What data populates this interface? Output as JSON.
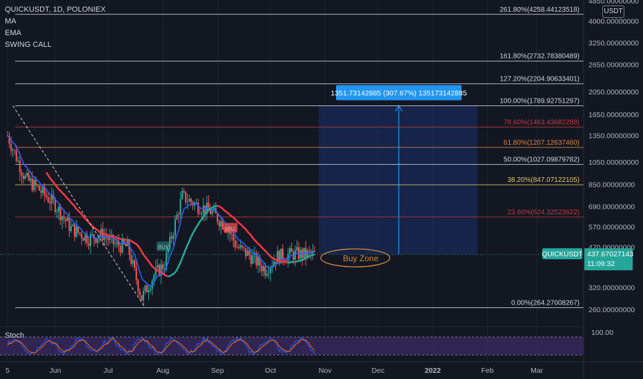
{
  "header": {
    "symbol_line": "QUICKUSDT, 1D, POLONIEX",
    "indicators": [
      "MA",
      "EMA",
      "SWING CALL"
    ],
    "currency_button": "USDT"
  },
  "price_axis": {
    "ticks": [
      "4850.00000000",
      "4000.00000000",
      "3250.00000000",
      "2650.00000000",
      "2050.00000000",
      "1650.00000000",
      "1350.00000000",
      "1050.00000000",
      "850.00000000",
      "690.00000000",
      "570.00000000",
      "470.00000000",
      "320.00000000",
      "260.00000000"
    ],
    "current_symbol": "QUICKUSDT",
    "current_price": "437.67027143",
    "countdown": "11:09:32"
  },
  "time_axis": [
    "5",
    "Jun",
    "Jul",
    "Aug",
    "Sep",
    "Oct",
    "Nov",
    "Dec",
    "2022",
    "Feb",
    "Mar"
  ],
  "fib_levels": [
    {
      "label": "261.80%(4258.44123518)",
      "color": "#d1d4dc",
      "price": 4258.44
    },
    {
      "label": "161.80%(2732.78380489)",
      "color": "#d1d4dc",
      "price": 2732.78
    },
    {
      "label": "127.20%(2204.90633401)",
      "color": "#d1d4dc",
      "price": 2204.91
    },
    {
      "label": "100.00%(1789.92751297)",
      "color": "#d1d4dc",
      "price": 1789.93
    },
    {
      "label": "78.60%(1463.43682288)",
      "color": "#c23b3b",
      "price": 1463.44
    },
    {
      "label": "61.80%(1207.12637460)",
      "color": "#d7863a",
      "price": 1207.13
    },
    {
      "label": "50.00%(1027.09879782)",
      "color": "#d1d4dc",
      "price": 1027.1
    },
    {
      "label": "38.20%(847.07122105)",
      "color": "#e0c463",
      "price": 847.07
    },
    {
      "label": "23.60%(624.32523622)",
      "color": "#c23b3b",
      "price": 624.33
    },
    {
      "label": "0.00%(264.27008267)",
      "color": "#d1d4dc",
      "price": 264.27
    }
  ],
  "annotations": {
    "measure_label": "1351.73142885 (307.67%) 135173142885",
    "buy_zone": "Buy Zone",
    "buy_signal": "BUY",
    "sell_signal": "SELL"
  },
  "stoch": {
    "label": "Stoch",
    "axis_label": "100.00"
  },
  "colors": {
    "up": "#26a69a",
    "down": "#ef5350",
    "ma": "#f23645",
    "ema": "#2962ff",
    "measure": "#2196f3",
    "buy_zone": "#d4883a"
  },
  "chart_data": {
    "type": "candlestick",
    "title": "QUICKUSDT, 1D, POLONIEX",
    "y_scale": "log",
    "ylim": [
      230,
      5200
    ],
    "x_range": [
      "2021-05-05",
      "2022-03-10"
    ],
    "close_path": [
      {
        "date": "2021-05-05",
        "close": 1350
      },
      {
        "date": "2021-05-10",
        "close": 1100
      },
      {
        "date": "2021-05-15",
        "close": 900
      },
      {
        "date": "2021-05-22",
        "close": 820
      },
      {
        "date": "2021-06-01",
        "close": 700
      },
      {
        "date": "2021-06-10",
        "close": 560
      },
      {
        "date": "2021-06-20",
        "close": 510
      },
      {
        "date": "2021-06-28",
        "close": 530
      },
      {
        "date": "2021-07-05",
        "close": 480
      },
      {
        "date": "2021-07-12",
        "close": 470
      },
      {
        "date": "2021-07-20",
        "close": 290
      },
      {
        "date": "2021-07-27",
        "close": 360
      },
      {
        "date": "2021-08-02",
        "close": 400
      },
      {
        "date": "2021-08-06",
        "close": 520
      },
      {
        "date": "2021-08-12",
        "close": 760
      },
      {
        "date": "2021-08-20",
        "close": 700
      },
      {
        "date": "2021-08-28",
        "close": 660
      },
      {
        "date": "2021-09-06",
        "close": 570
      },
      {
        "date": "2021-09-12",
        "close": 470
      },
      {
        "date": "2021-09-20",
        "close": 430
      },
      {
        "date": "2021-09-28",
        "close": 380
      },
      {
        "date": "2021-10-05",
        "close": 430
      },
      {
        "date": "2021-10-15",
        "close": 440
      },
      {
        "date": "2021-10-27",
        "close": 437.67
      }
    ],
    "series": [
      {
        "name": "MA"
      },
      {
        "name": "EMA"
      },
      {
        "name": "Stoch"
      }
    ]
  }
}
